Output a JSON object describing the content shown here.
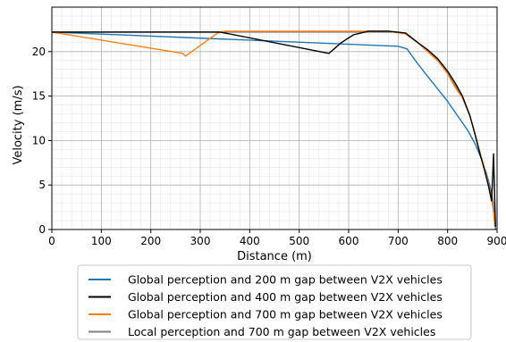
{
  "chart_data": {
    "type": "line",
    "xlabel": "Distance (m)",
    "ylabel": "Velocity (m/s)",
    "xlim": [
      0,
      900
    ],
    "ylim": [
      0,
      25
    ],
    "x_ticks": [
      0,
      100,
      200,
      300,
      400,
      500,
      600,
      700,
      800,
      900
    ],
    "y_ticks": [
      0,
      5,
      10,
      15,
      20
    ],
    "grid": true,
    "legend_placement": "bottom",
    "series": [
      {
        "name": "Global perception and 200 m gap between V2X vehicles",
        "color": "#1f77b4",
        "points": [
          [
            0,
            22.2
          ],
          [
            700,
            20.6
          ],
          [
            718,
            20.3
          ],
          [
            740,
            18.6
          ],
          [
            760,
            17.2
          ],
          [
            780,
            15.8
          ],
          [
            800,
            14.4
          ],
          [
            820,
            12.8
          ],
          [
            840,
            11.2
          ],
          [
            855,
            9.7
          ],
          [
            868,
            8.0
          ],
          [
            878,
            6.4
          ],
          [
            886,
            4.8
          ],
          [
            892,
            3.0
          ],
          [
            895,
            1.2
          ],
          [
            897,
            0
          ]
        ]
      },
      {
        "name": "Global perception and 400 m gap between V2X vehicles",
        "color": "#000000",
        "points": [
          [
            0,
            22.2
          ],
          [
            340,
            22.2
          ],
          [
            560,
            19.8
          ],
          [
            585,
            21.0
          ],
          [
            610,
            21.9
          ],
          [
            640,
            22.3
          ],
          [
            680,
            22.3
          ],
          [
            715,
            22.1
          ],
          [
            740,
            21.0
          ],
          [
            760,
            20.2
          ],
          [
            780,
            19.2
          ],
          [
            800,
            17.8
          ],
          [
            815,
            16.5
          ],
          [
            830,
            15.0
          ],
          [
            845,
            12.8
          ],
          [
            855,
            10.8
          ],
          [
            865,
            8.6
          ],
          [
            875,
            6.6
          ],
          [
            883,
            4.8
          ],
          [
            889,
            3.2
          ],
          [
            893,
            8.5
          ],
          [
            895,
            4.0
          ],
          [
            897,
            0.3
          ]
        ]
      },
      {
        "name": "Global perception and 700 m gap between V2X vehicles",
        "color": "#ff7f0e",
        "points": [
          [
            0,
            22.2
          ],
          [
            265,
            19.8
          ],
          [
            270,
            19.5
          ],
          [
            335,
            22.1
          ],
          [
            350,
            22.3
          ],
          [
            640,
            22.3
          ],
          [
            680,
            22.3
          ],
          [
            715,
            22.0
          ],
          [
            740,
            21.0
          ],
          [
            760,
            20.0
          ],
          [
            780,
            19.0
          ],
          [
            800,
            17.5
          ],
          [
            815,
            16.0
          ],
          [
            830,
            14.8
          ],
          [
            845,
            12.8
          ],
          [
            855,
            10.8
          ],
          [
            865,
            8.8
          ],
          [
            875,
            6.8
          ],
          [
            883,
            5.0
          ],
          [
            889,
            3.5
          ],
          [
            893,
            2.0
          ],
          [
            896,
            0.2
          ]
        ]
      },
      {
        "name": "Local perception and 700 m gap between V2X vehicles",
        "color": "#808080",
        "points": [
          [
            0,
            22.2
          ],
          [
            700,
            22.2
          ],
          [
            715,
            22.0
          ],
          [
            740,
            21.0
          ],
          [
            760,
            20.0
          ],
          [
            780,
            19.0
          ],
          [
            800,
            17.6
          ],
          [
            815,
            16.2
          ],
          [
            830,
            14.8
          ],
          [
            845,
            12.8
          ],
          [
            855,
            10.8
          ],
          [
            865,
            8.7
          ],
          [
            875,
            6.7
          ],
          [
            883,
            4.9
          ],
          [
            889,
            3.4
          ],
          [
            893,
            2.0
          ],
          [
            896,
            0.2
          ]
        ]
      }
    ]
  }
}
